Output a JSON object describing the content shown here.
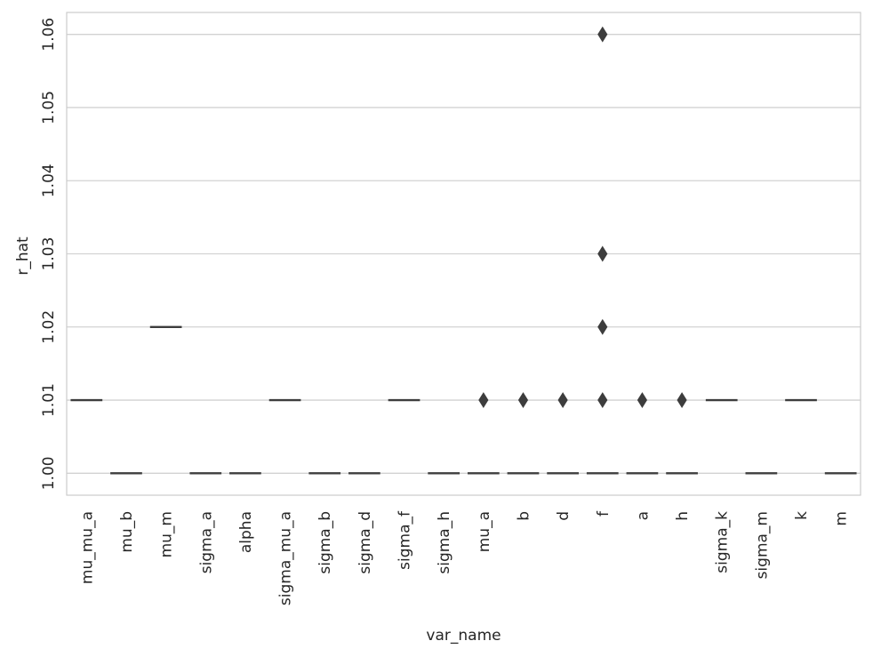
{
  "chart_data": {
    "type": "box",
    "xlabel": "var_name",
    "ylabel": "r_hat",
    "categories": [
      "mu_mu_a",
      "mu_b",
      "mu_m",
      "sigma_a",
      "alpha",
      "sigma_mu_a",
      "sigma_b",
      "sigma_d",
      "sigma_f",
      "sigma_h",
      "mu_a",
      "b",
      "d",
      "f",
      "a",
      "h",
      "sigma_k",
      "sigma_m",
      "k",
      "m"
    ],
    "ylim": [
      0.997,
      1.063
    ],
    "yticks": [
      1.0,
      1.01,
      1.02,
      1.03,
      1.04,
      1.05,
      1.06
    ],
    "ytick_labels": [
      "1.00",
      "1.01",
      "1.02",
      "1.03",
      "1.04",
      "1.05",
      "1.06"
    ],
    "values": [
      1.01,
      1.0,
      1.02,
      1.0,
      1.0,
      1.01,
      1.0,
      1.0,
      1.01,
      1.0,
      1.0,
      1.0,
      1.0,
      1.0,
      1.0,
      1.0,
      1.01,
      1.0,
      1.01,
      1.0
    ],
    "outliers": [
      {
        "category": "mu_a",
        "values": [
          1.01
        ]
      },
      {
        "category": "b",
        "values": [
          1.01
        ]
      },
      {
        "category": "d",
        "values": [
          1.01
        ]
      },
      {
        "category": "f",
        "values": [
          1.01,
          1.02,
          1.03,
          1.06
        ]
      },
      {
        "category": "a",
        "values": [
          1.01
        ]
      },
      {
        "category": "h",
        "values": [
          1.01
        ]
      }
    ],
    "grid": "horizontal",
    "colors": {
      "box": "#3d3d3d",
      "grid": "#d2d2d2",
      "spine": "#cccccc",
      "text": "#262626"
    }
  }
}
